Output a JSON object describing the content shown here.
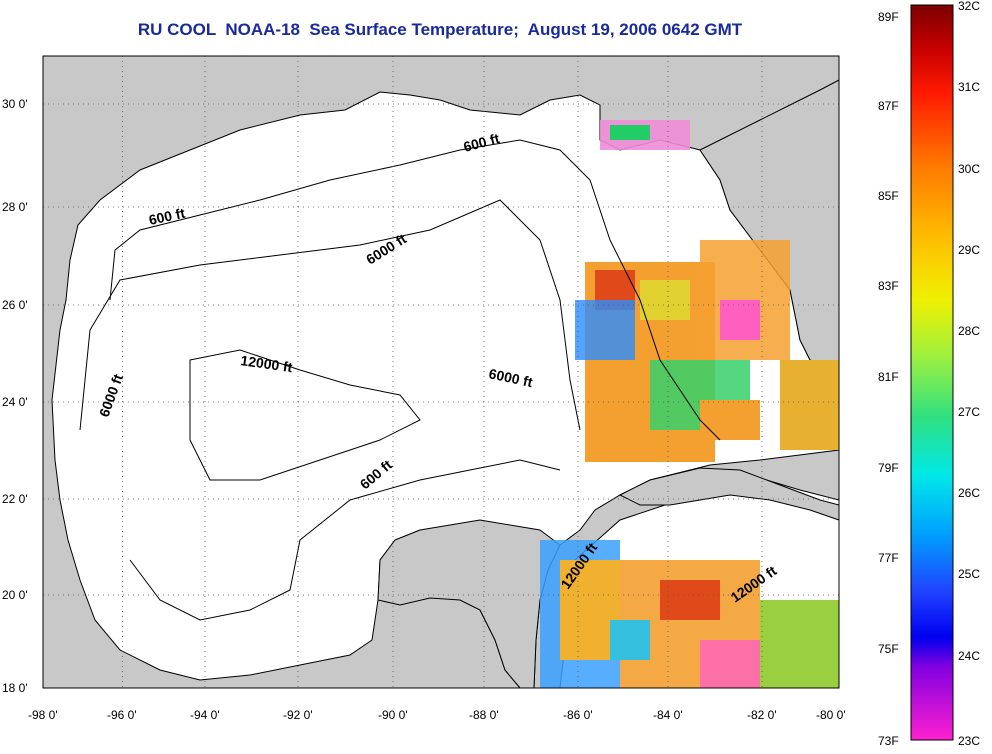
{
  "title": "RU COOL  NOAA-18  Sea Surface Temperature;  August 19, 2006 0642 GMT",
  "colors": {
    "land": "#c8c8c8",
    "ocean": "#ffffff",
    "title": "#1a2a9a"
  },
  "map": {
    "lon_ticks": [
      "-98 0'",
      "-96 0'",
      "-94 0'",
      "-92 0'",
      "-90 0'",
      "-88 0'",
      "-86 0'",
      "-84 0'",
      "-82 0'",
      "-80 0'"
    ],
    "lat_ticks": [
      "30 0'",
      "28 0'",
      "26 0'",
      "24 0'",
      "22 0'",
      "20 0'",
      "18 0'"
    ],
    "lon_range": [
      -98,
      -80
    ],
    "lat_range": [
      18,
      31.2
    ],
    "grid": "dotted",
    "contour_labels": [
      "600 ft",
      "600 ft",
      "6000 ft",
      "12000 ft",
      "6000 ft",
      "6000 ft",
      "600 ft",
      "12000 ft",
      "12000 ft"
    ]
  },
  "colorbar": {
    "fahrenheit_labels": [
      "89F",
      "87F",
      "85F",
      "83F",
      "81F",
      "79F",
      "77F",
      "75F",
      "73F"
    ],
    "celsius_labels": [
      "32C",
      "31C",
      "30C",
      "29C",
      "28C",
      "27C",
      "26C",
      "25C",
      "24C",
      "23C"
    ],
    "range_c": [
      23,
      32
    ]
  }
}
